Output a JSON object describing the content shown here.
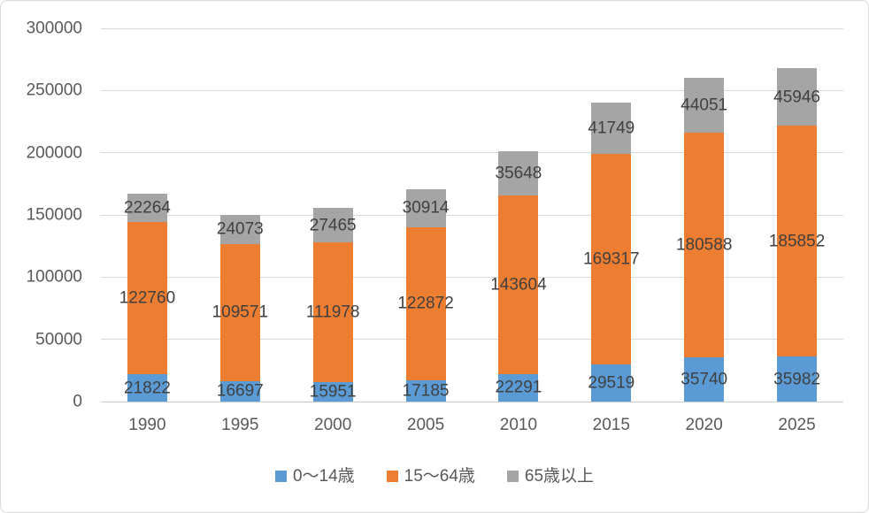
{
  "chart_data": {
    "type": "bar",
    "stacked": true,
    "categories": [
      "1990",
      "1995",
      "2000",
      "2005",
      "2010",
      "2015",
      "2020",
      "2025"
    ],
    "series": [
      {
        "name": "0〜14歳",
        "color": "#5B9BD5",
        "values": [
          21822,
          16697,
          15951,
          17185,
          22291,
          29519,
          35740,
          35982
        ]
      },
      {
        "name": "15〜64歳",
        "color": "#ED7D31",
        "values": [
          122760,
          109571,
          111978,
          122872,
          143604,
          169317,
          180588,
          185852
        ]
      },
      {
        "name": "65歳以上",
        "color": "#A5A5A5",
        "values": [
          22264,
          24073,
          27465,
          30914,
          35648,
          41749,
          44051,
          45946
        ]
      }
    ],
    "yticks": [
      0,
      50000,
      100000,
      150000,
      200000,
      250000,
      300000
    ],
    "ylim": [
      0,
      300000
    ],
    "grid": true,
    "data_labels": true,
    "legend_position": "bottom"
  }
}
